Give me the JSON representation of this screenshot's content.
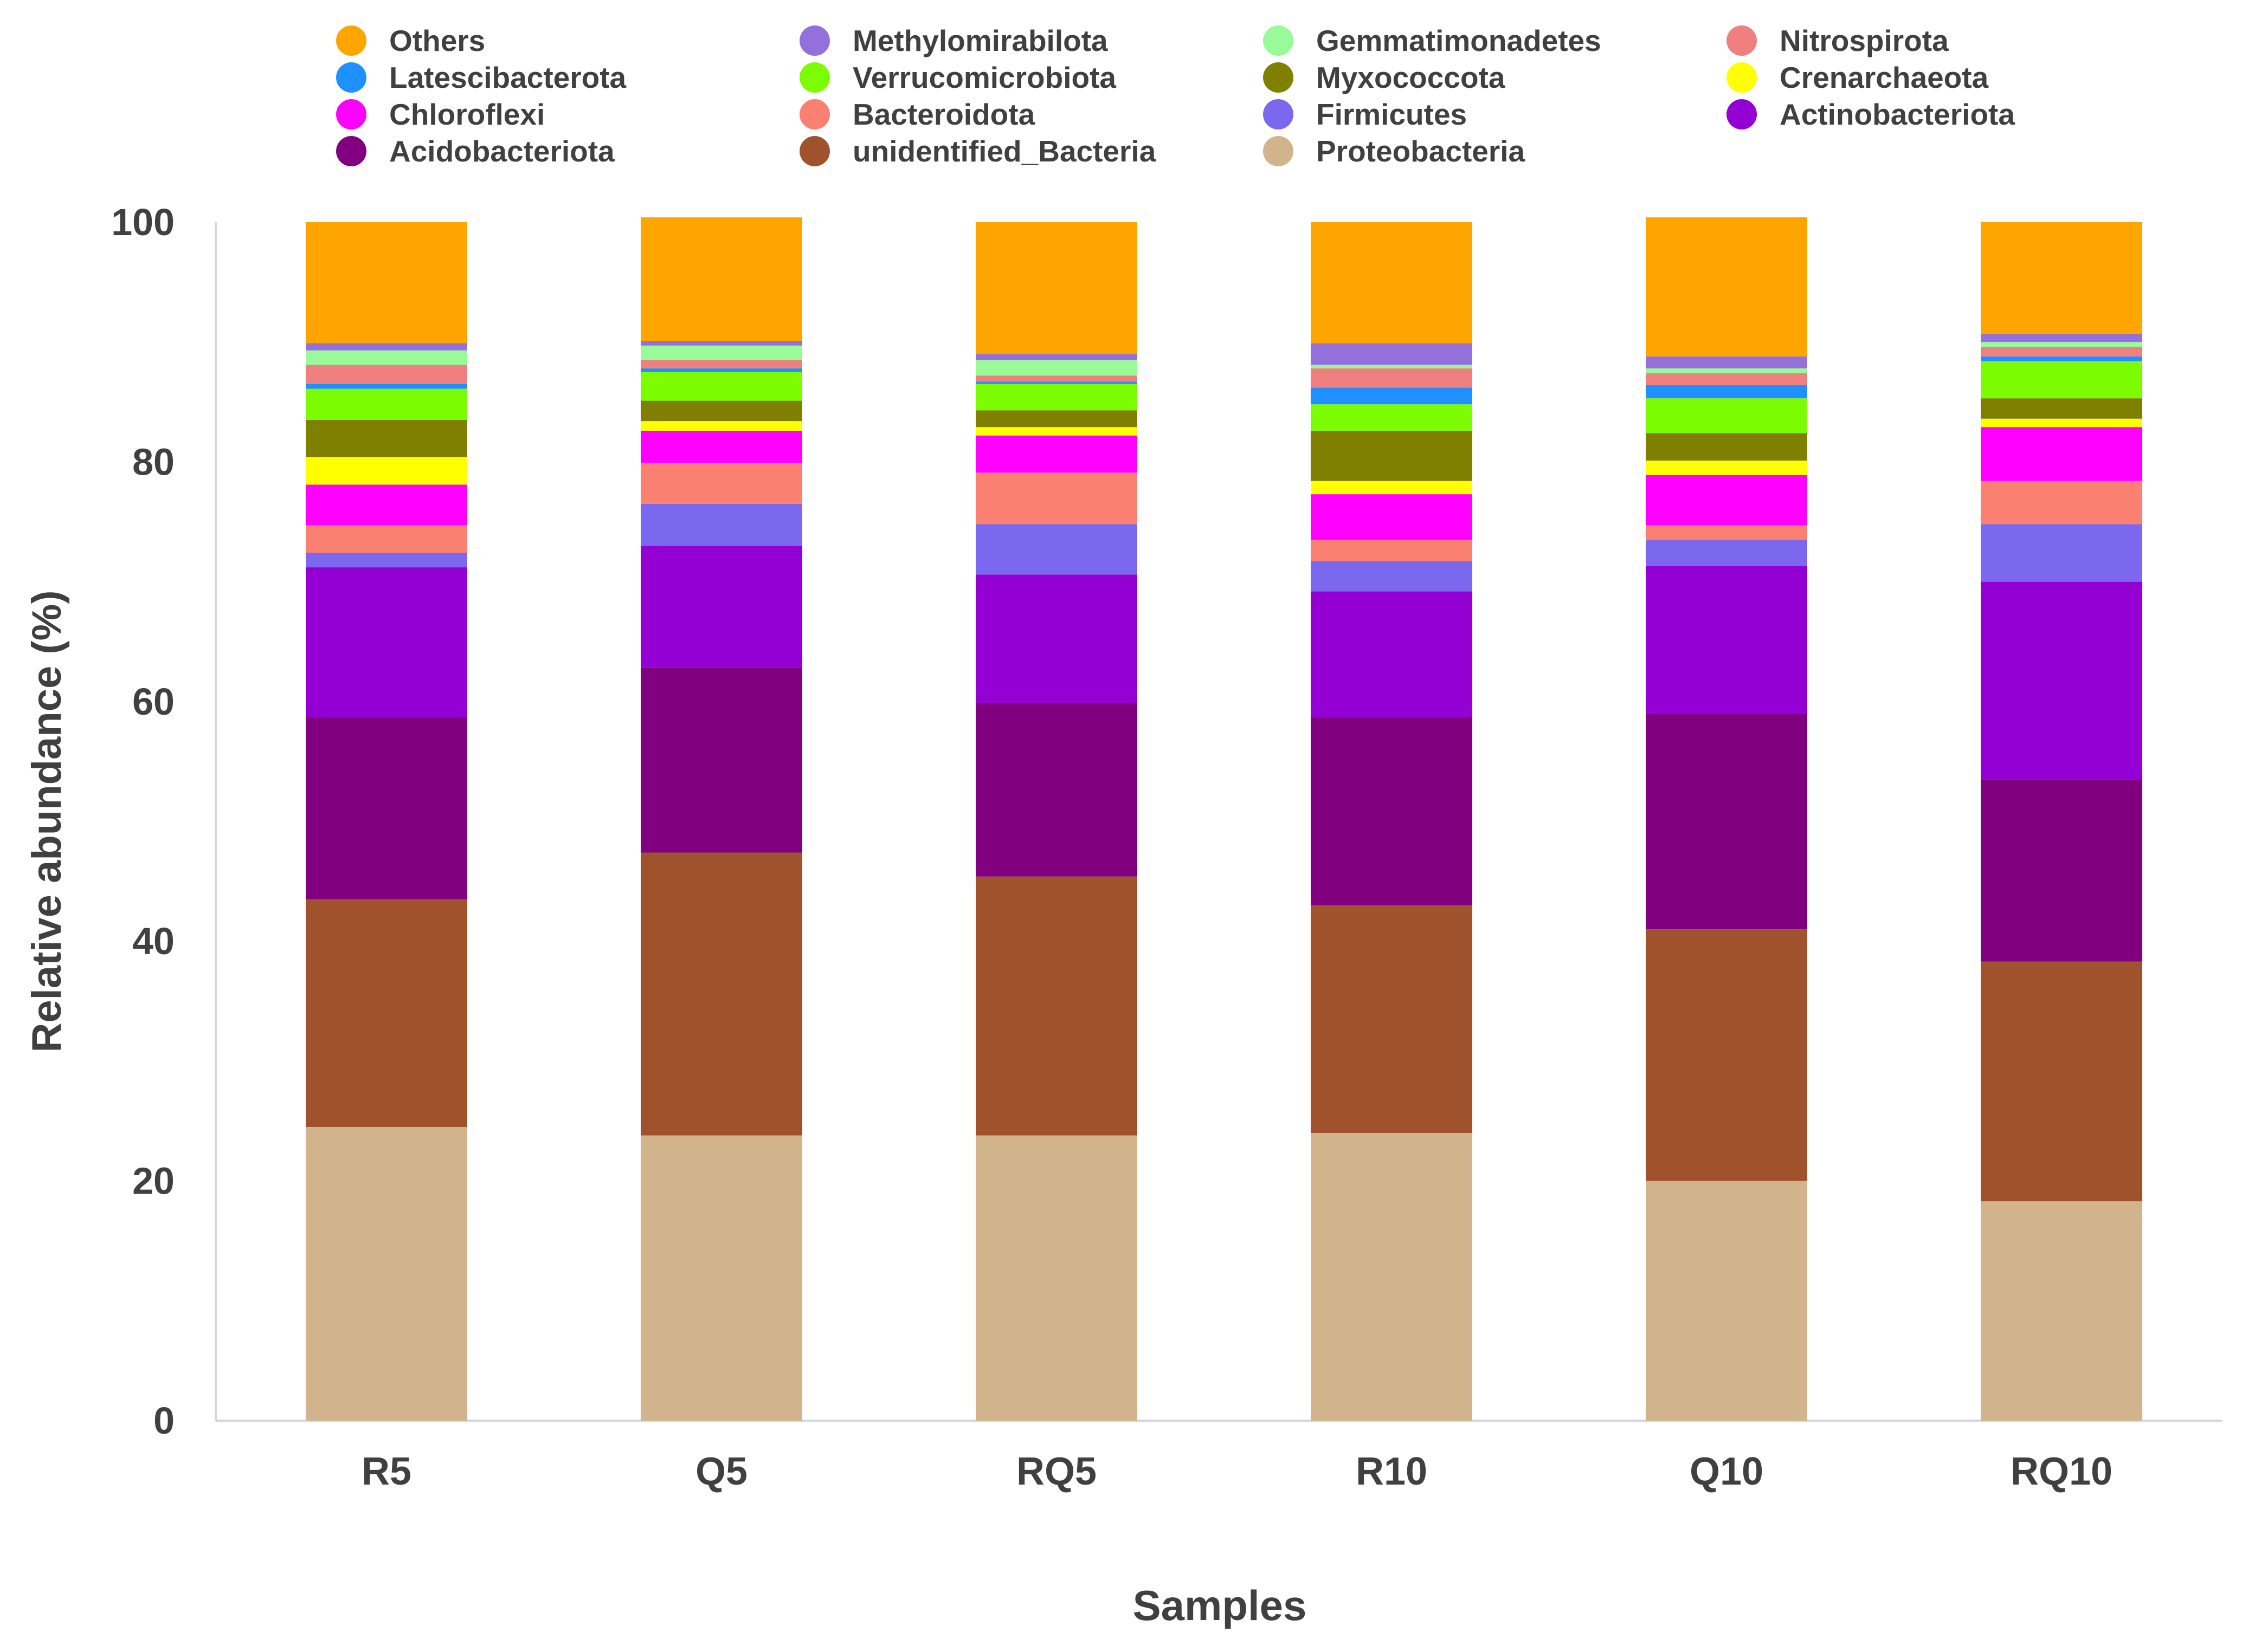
{
  "chart_data": {
    "type": "bar",
    "stacked": true,
    "title": "",
    "xlabel": "Samples",
    "ylabel": "Relative abundance (%)",
    "ylim": [
      0,
      100
    ],
    "yticks": [
      0,
      20,
      40,
      60,
      80,
      100
    ],
    "categories": [
      "R5",
      "Q5",
      "RQ5",
      "R10",
      "Q10",
      "RQ10"
    ],
    "legend_position": "top",
    "legend_order": [
      "Others",
      "Methylomirabilota",
      "Gemmatimonadetes",
      "Nitrospirota",
      "Latescibacterota",
      "Verrucomicrobiota",
      "Myxococcota",
      "Crenarchaeota",
      "Chloroflexi",
      "Bacteroidota",
      "Firmicutes",
      "Actinobacteriota",
      "Acidobacteriota",
      "unidentified_Bacteria",
      "Proteobacteria"
    ],
    "series": [
      {
        "name": "Proteobacteria",
        "color": "#D2B48C",
        "values": [
          24.5,
          23.8,
          23.8,
          24.0,
          20.0,
          18.3
        ]
      },
      {
        "name": "unidentified_Bacteria",
        "color": "#A0522D",
        "values": [
          19.0,
          23.6,
          21.6,
          19.0,
          21.0,
          20.0
        ]
      },
      {
        "name": "Acidobacteriota",
        "color": "#800080",
        "values": [
          15.2,
          15.4,
          14.5,
          15.7,
          18.0,
          15.2
        ]
      },
      {
        "name": "Actinobacteriota",
        "color": "#9400D3",
        "values": [
          12.5,
          10.2,
          10.7,
          10.5,
          12.3,
          16.5
        ]
      },
      {
        "name": "Firmicutes",
        "color": "#7B68EE",
        "values": [
          1.2,
          3.5,
          4.2,
          2.5,
          2.2,
          4.8
        ]
      },
      {
        "name": "Bacteroidota",
        "color": "#FA8072",
        "values": [
          2.3,
          3.4,
          4.3,
          1.8,
          1.2,
          3.6
        ]
      },
      {
        "name": "Chloroflexi",
        "color": "#FF00FF",
        "values": [
          3.4,
          2.7,
          3.1,
          3.8,
          4.2,
          4.5
        ]
      },
      {
        "name": "Crenarchaeota",
        "color": "#FFFF00",
        "values": [
          2.3,
          0.8,
          0.7,
          1.1,
          1.2,
          0.7
        ]
      },
      {
        "name": "Myxococcota",
        "color": "#808000",
        "values": [
          3.1,
          1.7,
          1.4,
          4.2,
          2.3,
          1.7
        ]
      },
      {
        "name": "Verrucomicrobiota",
        "color": "#7CFC00",
        "values": [
          2.6,
          2.4,
          2.2,
          2.2,
          2.9,
          3.1
        ]
      },
      {
        "name": "Latescibacterota",
        "color": "#1E90FF",
        "values": [
          0.4,
          0.3,
          0.2,
          1.4,
          1.1,
          0.4
        ]
      },
      {
        "name": "Nitrospirota",
        "color": "#F08080",
        "values": [
          1.6,
          0.7,
          0.5,
          1.6,
          1.0,
          0.8
        ]
      },
      {
        "name": "Gemmatimonadetes",
        "color": "#98FB98",
        "values": [
          1.2,
          1.2,
          1.3,
          0.3,
          0.4,
          0.4
        ]
      },
      {
        "name": "Methylomirabilota",
        "color": "#9370DB",
        "values": [
          0.6,
          0.4,
          0.5,
          1.8,
          1.0,
          0.7
        ]
      },
      {
        "name": "Others",
        "color": "#FFA500",
        "values": [
          10.1,
          10.3,
          11.0,
          10.1,
          11.6,
          9.3
        ]
      }
    ]
  }
}
